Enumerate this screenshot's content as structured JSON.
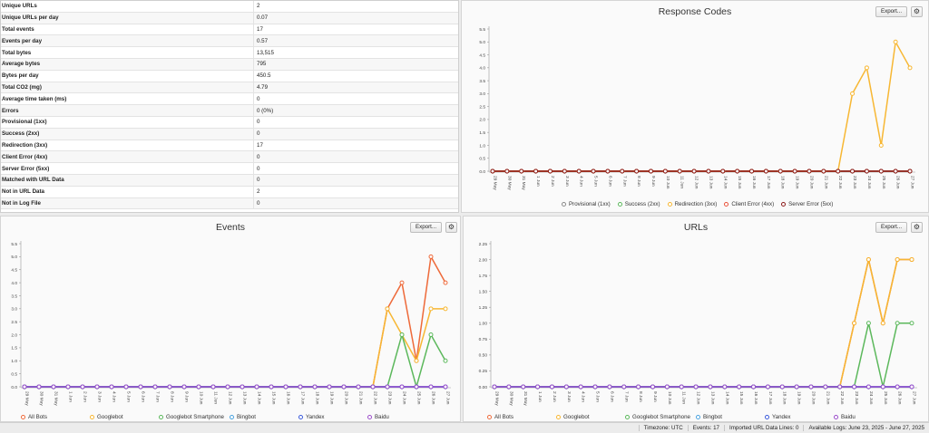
{
  "stats": [
    {
      "label": "Unique URLs",
      "value": "2"
    },
    {
      "label": "Unique URLs per day",
      "value": "0.07"
    },
    {
      "label": "Total events",
      "value": "17"
    },
    {
      "label": "Events per day",
      "value": "0.57"
    },
    {
      "label": "Total bytes",
      "value": "13,515"
    },
    {
      "label": "Average bytes",
      "value": "795"
    },
    {
      "label": "Bytes per day",
      "value": "450.5"
    },
    {
      "label": "Total CO2 (mg)",
      "value": "4.79"
    },
    {
      "label": "Average time taken (ms)",
      "value": "0"
    },
    {
      "label": "Errors",
      "value": "0 (0%)"
    },
    {
      "label": "Provisional (1xx)",
      "value": "0"
    },
    {
      "label": "Success (2xx)",
      "value": "0"
    },
    {
      "label": "Redirection (3xx)",
      "value": "17"
    },
    {
      "label": "Client Error (4xx)",
      "value": "0"
    },
    {
      "label": "Server Error (5xx)",
      "value": "0"
    },
    {
      "label": "Matched with URL Data",
      "value": "0"
    },
    {
      "label": "Not in URL Data",
      "value": "2"
    },
    {
      "label": "Not in Log File",
      "value": "0"
    }
  ],
  "buttons": {
    "export_label": "Export...",
    "gear_glyph": "⚙"
  },
  "panels": {
    "response": {
      "title": "Response Codes"
    },
    "events": {
      "title": "Events"
    },
    "urls": {
      "title": "URLs"
    }
  },
  "status_bar": {
    "timezone": "Timezone:  UTC",
    "events": "Events:  17",
    "imported": "Imported URL Data Lines:  0",
    "available": "Available Logs:  June 23, 2025 - June 27, 2025"
  },
  "chart_data": [
    {
      "id": "response",
      "type": "line",
      "title": "Response Codes",
      "categories": [
        "29 May",
        "30 May",
        "31 May",
        "1 Jun",
        "2 Jun",
        "3 Jun",
        "4 Jun",
        "5 Jun",
        "6 Jun",
        "7 Jun",
        "8 Jun",
        "9 Jun",
        "10 Jun",
        "11 Jun",
        "12 Jun",
        "13 Jun",
        "14 Jun",
        "15 Jun",
        "16 Jun",
        "17 Jun",
        "18 Jun",
        "19 Jun",
        "20 Jun",
        "21 Jun",
        "22 Jun",
        "23 Jun",
        "24 Jun",
        "25 Jun",
        "26 Jun",
        "27 Jun"
      ],
      "ylim": [
        0,
        5.5
      ],
      "yticks": [
        "0.0",
        "0.5",
        "1.0",
        "1.5",
        "2.0",
        "2.5",
        "3.0",
        "3.5",
        "4.0",
        "4.5",
        "5.0",
        "5.5"
      ],
      "grid": false,
      "legend_placement": "bottom",
      "series": [
        {
          "name": "Provisional (1xx)",
          "color": "#8a8a8a",
          "values": [
            0,
            0,
            0,
            0,
            0,
            0,
            0,
            0,
            0,
            0,
            0,
            0,
            0,
            0,
            0,
            0,
            0,
            0,
            0,
            0,
            0,
            0,
            0,
            0,
            0,
            0,
            0,
            0,
            0,
            0
          ]
        },
        {
          "name": "Success (2xx)",
          "color": "#5cb85c",
          "values": [
            0,
            0,
            0,
            0,
            0,
            0,
            0,
            0,
            0,
            0,
            0,
            0,
            0,
            0,
            0,
            0,
            0,
            0,
            0,
            0,
            0,
            0,
            0,
            0,
            0,
            0,
            0,
            0,
            0,
            0
          ]
        },
        {
          "name": "Redirection (3xx)",
          "color": "#f7b733",
          "values": [
            0,
            0,
            0,
            0,
            0,
            0,
            0,
            0,
            0,
            0,
            0,
            0,
            0,
            0,
            0,
            0,
            0,
            0,
            0,
            0,
            0,
            0,
            0,
            0,
            0,
            3,
            4,
            1,
            5,
            4
          ]
        },
        {
          "name": "Client Error (4xx)",
          "color": "#e8513a",
          "values": [
            0,
            0,
            0,
            0,
            0,
            0,
            0,
            0,
            0,
            0,
            0,
            0,
            0,
            0,
            0,
            0,
            0,
            0,
            0,
            0,
            0,
            0,
            0,
            0,
            0,
            0,
            0,
            0,
            0,
            0
          ]
        },
        {
          "name": "Server Error (5xx)",
          "color": "#8b1a1a",
          "values": [
            0,
            0,
            0,
            0,
            0,
            0,
            0,
            0,
            0,
            0,
            0,
            0,
            0,
            0,
            0,
            0,
            0,
            0,
            0,
            0,
            0,
            0,
            0,
            0,
            0,
            0,
            0,
            0,
            0,
            0
          ]
        }
      ]
    },
    {
      "id": "events",
      "type": "line",
      "title": "Events",
      "categories": [
        "29 May",
        "30 May",
        "31 May",
        "1 Jun",
        "2 Jun",
        "3 Jun",
        "4 Jun",
        "5 Jun",
        "6 Jun",
        "7 Jun",
        "8 Jun",
        "9 Jun",
        "10 Jun",
        "11 Jun",
        "12 Jun",
        "13 Jun",
        "14 Jun",
        "15 Jun",
        "16 Jun",
        "17 Jun",
        "18 Jun",
        "19 Jun",
        "20 Jun",
        "21 Jun",
        "22 Jun",
        "23 Jun",
        "24 Jun",
        "25 Jun",
        "26 Jun",
        "27 Jun"
      ],
      "ylim": [
        0,
        5.5
      ],
      "yticks": [
        "0.0",
        "0.5",
        "1.0",
        "1.5",
        "2.0",
        "2.5",
        "3.0",
        "3.5",
        "4.0",
        "4.5",
        "5.0",
        "5.5"
      ],
      "grid": false,
      "legend_placement": "bottom",
      "series": [
        {
          "name": "All Bots",
          "color": "#ee6a3a",
          "values": [
            0,
            0,
            0,
            0,
            0,
            0,
            0,
            0,
            0,
            0,
            0,
            0,
            0,
            0,
            0,
            0,
            0,
            0,
            0,
            0,
            0,
            0,
            0,
            0,
            0,
            3,
            4,
            1,
            5,
            4
          ]
        },
        {
          "name": "Googlebot",
          "color": "#f7b733",
          "values": [
            0,
            0,
            0,
            0,
            0,
            0,
            0,
            0,
            0,
            0,
            0,
            0,
            0,
            0,
            0,
            0,
            0,
            0,
            0,
            0,
            0,
            0,
            0,
            0,
            0,
            3,
            2,
            1,
            3,
            3
          ]
        },
        {
          "name": "Googlebot Smartphone",
          "color": "#5cb85c",
          "values": [
            0,
            0,
            0,
            0,
            0,
            0,
            0,
            0,
            0,
            0,
            0,
            0,
            0,
            0,
            0,
            0,
            0,
            0,
            0,
            0,
            0,
            0,
            0,
            0,
            0,
            0,
            2,
            0,
            2,
            1
          ]
        },
        {
          "name": "Bingbot",
          "color": "#4aa3df",
          "values": [
            0,
            0,
            0,
            0,
            0,
            0,
            0,
            0,
            0,
            0,
            0,
            0,
            0,
            0,
            0,
            0,
            0,
            0,
            0,
            0,
            0,
            0,
            0,
            0,
            0,
            0,
            0,
            0,
            0,
            0
          ]
        },
        {
          "name": "Yandex",
          "color": "#3b5bdb",
          "values": [
            0,
            0,
            0,
            0,
            0,
            0,
            0,
            0,
            0,
            0,
            0,
            0,
            0,
            0,
            0,
            0,
            0,
            0,
            0,
            0,
            0,
            0,
            0,
            0,
            0,
            0,
            0,
            0,
            0,
            0
          ]
        },
        {
          "name": "Baidu",
          "color": "#9b4dca",
          "values": [
            0,
            0,
            0,
            0,
            0,
            0,
            0,
            0,
            0,
            0,
            0,
            0,
            0,
            0,
            0,
            0,
            0,
            0,
            0,
            0,
            0,
            0,
            0,
            0,
            0,
            0,
            0,
            0,
            0,
            0
          ]
        }
      ]
    },
    {
      "id": "urls",
      "type": "line",
      "title": "URLs",
      "categories": [
        "29 May",
        "30 May",
        "31 May",
        "1 Jun",
        "2 Jun",
        "3 Jun",
        "4 Jun",
        "5 Jun",
        "6 Jun",
        "7 Jun",
        "8 Jun",
        "9 Jun",
        "10 Jun",
        "11 Jun",
        "12 Jun",
        "13 Jun",
        "14 Jun",
        "15 Jun",
        "16 Jun",
        "17 Jun",
        "18 Jun",
        "19 Jun",
        "20 Jun",
        "21 Jun",
        "22 Jun",
        "23 Jun",
        "24 Jun",
        "25 Jun",
        "26 Jun",
        "27 Jun"
      ],
      "ylim": [
        0,
        2.25
      ],
      "yticks": [
        "0.00",
        "0.25",
        "0.50",
        "0.75",
        "1.00",
        "1.25",
        "1.50",
        "1.75",
        "2.00",
        "2.25"
      ],
      "grid": false,
      "legend_placement": "bottom",
      "series": [
        {
          "name": "All Bots",
          "color": "#ee6a3a",
          "values": [
            0,
            0,
            0,
            0,
            0,
            0,
            0,
            0,
            0,
            0,
            0,
            0,
            0,
            0,
            0,
            0,
            0,
            0,
            0,
            0,
            0,
            0,
            0,
            0,
            0,
            1,
            2,
            1,
            2,
            2
          ]
        },
        {
          "name": "Googlebot",
          "color": "#f7b733",
          "values": [
            0,
            0,
            0,
            0,
            0,
            0,
            0,
            0,
            0,
            0,
            0,
            0,
            0,
            0,
            0,
            0,
            0,
            0,
            0,
            0,
            0,
            0,
            0,
            0,
            0,
            1,
            2,
            1,
            2,
            2
          ]
        },
        {
          "name": "Googlebot Smartphone",
          "color": "#5cb85c",
          "values": [
            0,
            0,
            0,
            0,
            0,
            0,
            0,
            0,
            0,
            0,
            0,
            0,
            0,
            0,
            0,
            0,
            0,
            0,
            0,
            0,
            0,
            0,
            0,
            0,
            0,
            0,
            1,
            0,
            1,
            1
          ]
        },
        {
          "name": "Bingbot",
          "color": "#4aa3df",
          "values": [
            0,
            0,
            0,
            0,
            0,
            0,
            0,
            0,
            0,
            0,
            0,
            0,
            0,
            0,
            0,
            0,
            0,
            0,
            0,
            0,
            0,
            0,
            0,
            0,
            0,
            0,
            0,
            0,
            0,
            0
          ]
        },
        {
          "name": "Yandex",
          "color": "#3b5bdb",
          "values": [
            0,
            0,
            0,
            0,
            0,
            0,
            0,
            0,
            0,
            0,
            0,
            0,
            0,
            0,
            0,
            0,
            0,
            0,
            0,
            0,
            0,
            0,
            0,
            0,
            0,
            0,
            0,
            0,
            0,
            0
          ]
        },
        {
          "name": "Baidu",
          "color": "#9b4dca",
          "values": [
            0,
            0,
            0,
            0,
            0,
            0,
            0,
            0,
            0,
            0,
            0,
            0,
            0,
            0,
            0,
            0,
            0,
            0,
            0,
            0,
            0,
            0,
            0,
            0,
            0,
            0,
            0,
            0,
            0,
            0
          ]
        }
      ]
    }
  ]
}
